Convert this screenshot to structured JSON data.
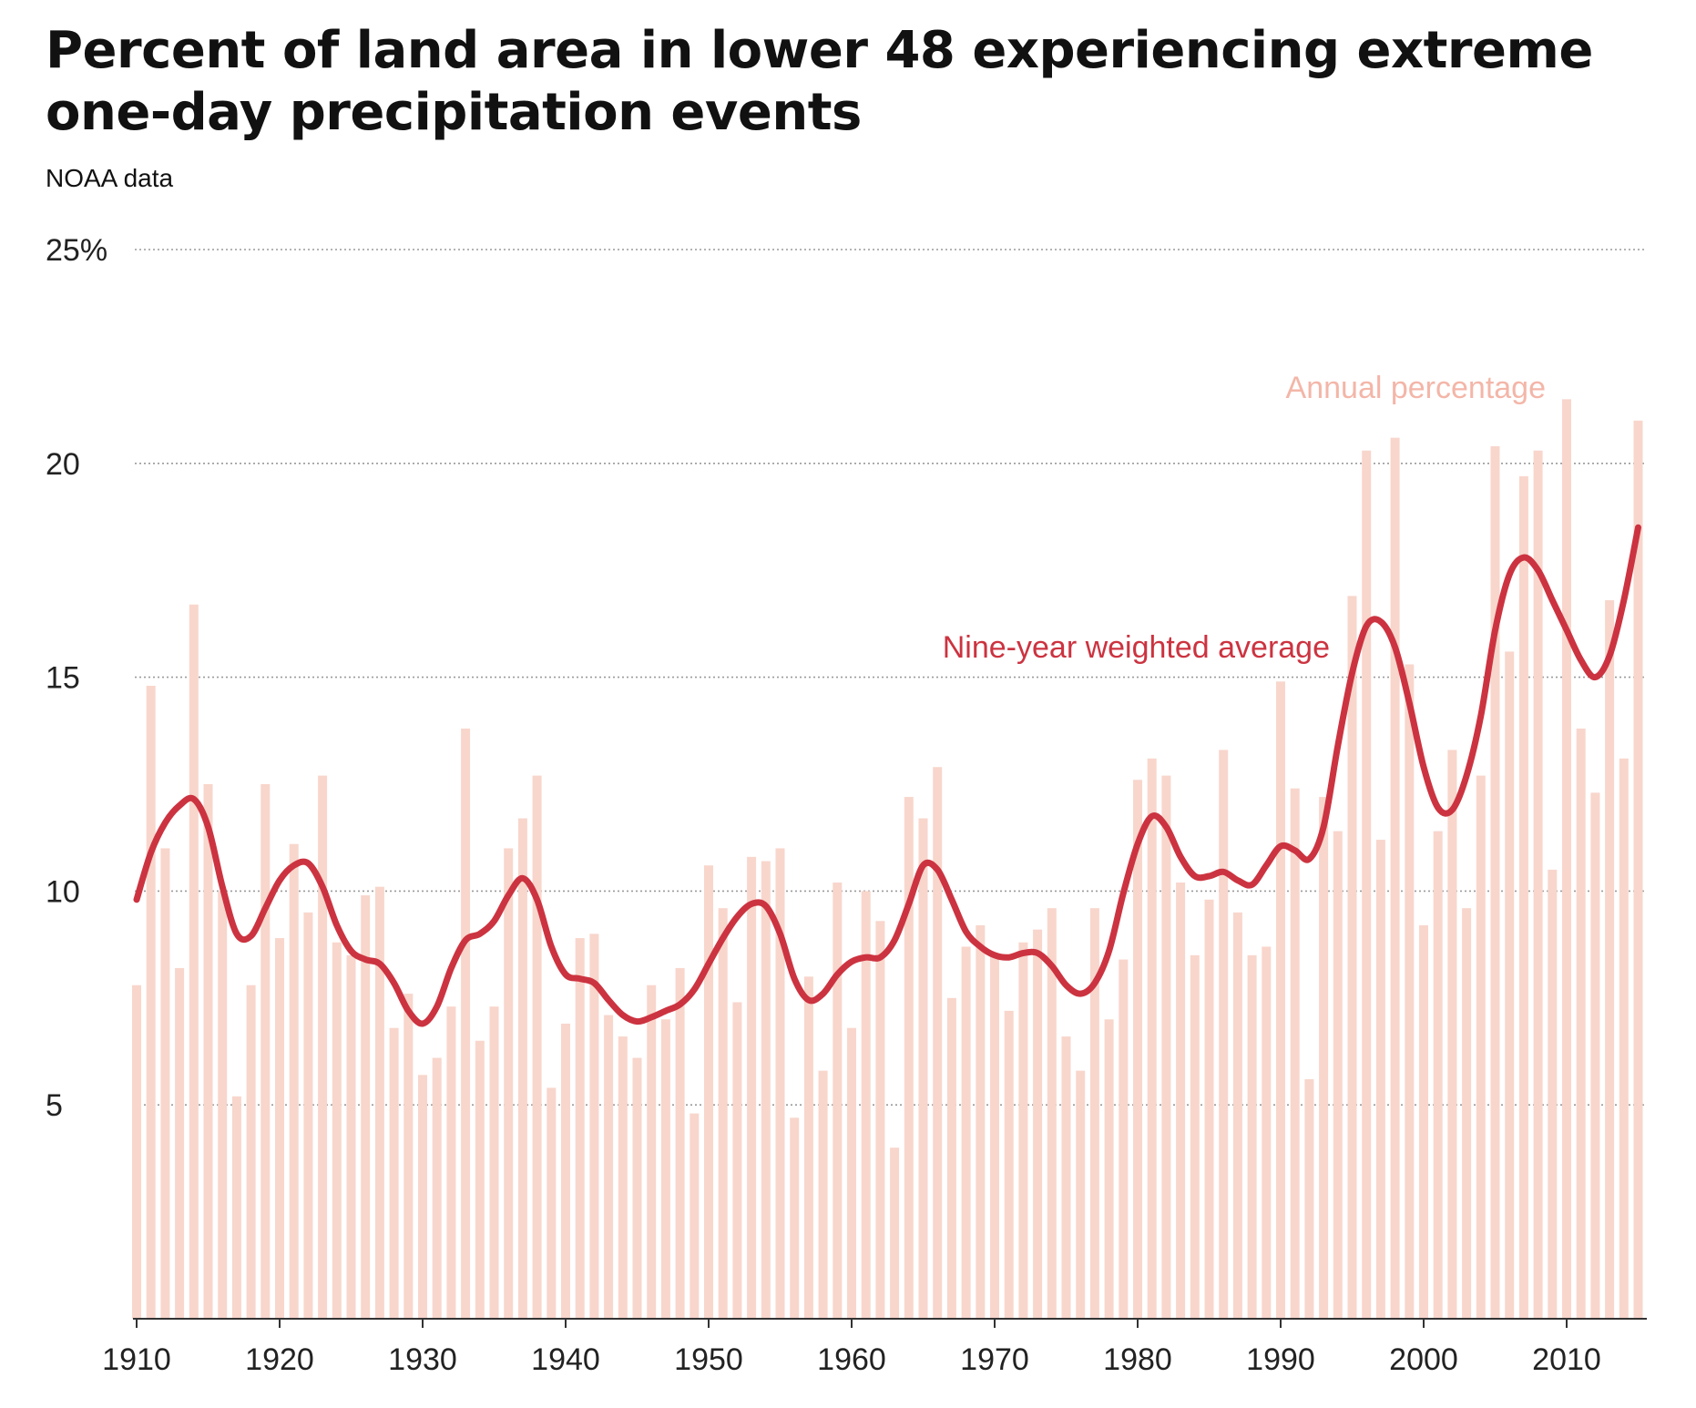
{
  "title": "Percent of land area in lower 48 experiencing extreme one-day precipitation events",
  "subtitle": "NOAA data",
  "colors": {
    "bar": "#f8d6cc",
    "line": "#cc3340",
    "grid": "#9a9a9a",
    "axis": "#333333",
    "bar_label": "#f3b6a8"
  },
  "chart_data": {
    "type": "bar",
    "title": "Percent of land area in lower 48 experiencing extreme one-day precipitation events",
    "subtitle": "NOAA data",
    "ylim": [
      0,
      25
    ],
    "xlim": [
      1910,
      2015
    ],
    "y_ticks": [
      5,
      10,
      15,
      20,
      25
    ],
    "y_tick_labels": [
      "5",
      "10",
      "15",
      "20",
      "25%"
    ],
    "x_ticks": [
      1910,
      1920,
      1930,
      1940,
      1950,
      1960,
      1970,
      1980,
      1990,
      2000,
      2010
    ],
    "x_tick_labels": [
      "1910",
      "1920",
      "1930",
      "1940",
      "1950",
      "1960",
      "1970",
      "1980",
      "1990",
      "2000",
      "2010"
    ],
    "grid": true,
    "legend": "inline labels",
    "series": [
      {
        "name": "Annual percentage",
        "type": "bar",
        "x": [
          1910,
          1911,
          1912,
          1913,
          1914,
          1915,
          1916,
          1917,
          1918,
          1919,
          1920,
          1921,
          1922,
          1923,
          1924,
          1925,
          1926,
          1927,
          1928,
          1929,
          1930,
          1931,
          1932,
          1933,
          1934,
          1935,
          1936,
          1937,
          1938,
          1939,
          1940,
          1941,
          1942,
          1943,
          1944,
          1945,
          1946,
          1947,
          1948,
          1949,
          1950,
          1951,
          1952,
          1953,
          1954,
          1955,
          1956,
          1957,
          1958,
          1959,
          1960,
          1961,
          1962,
          1963,
          1964,
          1965,
          1966,
          1967,
          1968,
          1969,
          1970,
          1971,
          1972,
          1973,
          1974,
          1975,
          1976,
          1977,
          1978,
          1979,
          1980,
          1981,
          1982,
          1983,
          1984,
          1985,
          1986,
          1987,
          1988,
          1989,
          1990,
          1991,
          1992,
          1993,
          1994,
          1995,
          1996,
          1997,
          1998,
          1999,
          2000,
          2001,
          2002,
          2003,
          2004,
          2005,
          2006,
          2007,
          2008,
          2009,
          2010,
          2011,
          2012,
          2013,
          2014,
          2015
        ],
        "values": [
          7.8,
          14.8,
          11.0,
          8.2,
          16.7,
          12.5,
          10.0,
          5.2,
          7.8,
          12.5,
          8.9,
          11.1,
          9.5,
          12.7,
          8.8,
          8.5,
          9.9,
          10.1,
          6.8,
          7.6,
          5.7,
          6.1,
          7.3,
          13.8,
          6.5,
          7.3,
          11.0,
          11.7,
          12.7,
          5.4,
          6.9,
          8.9,
          9.0,
          7.1,
          6.6,
          6.1,
          7.8,
          7.0,
          8.2,
          4.8,
          10.6,
          9.6,
          7.4,
          10.8,
          10.7,
          11.0,
          4.7,
          8.0,
          5.8,
          10.2,
          6.8,
          10.0,
          9.3,
          4.0,
          12.2,
          11.7,
          12.9,
          7.5,
          8.7,
          9.2,
          8.5,
          7.2,
          8.8,
          9.1,
          9.6,
          6.6,
          5.8,
          9.6,
          7.0,
          8.4,
          12.6,
          13.1,
          12.7,
          10.2,
          8.5,
          9.8,
          13.3,
          9.5,
          8.5,
          8.7,
          14.9,
          12.4,
          5.6,
          12.2,
          11.4,
          16.9,
          20.3,
          11.2,
          20.6,
          15.3,
          9.2,
          11.4,
          13.3,
          9.6,
          12.7,
          20.4,
          15.6,
          19.7,
          20.3,
          10.5,
          21.5,
          13.8,
          12.3,
          16.8,
          13.1,
          21.0
        ]
      },
      {
        "name": "Nine-year weighted average",
        "type": "line",
        "x": [
          1910,
          1911,
          1912,
          1913,
          1914,
          1915,
          1916,
          1917,
          1918,
          1919,
          1920,
          1921,
          1922,
          1923,
          1924,
          1925,
          1926,
          1927,
          1928,
          1929,
          1930,
          1931,
          1932,
          1933,
          1934,
          1935,
          1936,
          1937,
          1938,
          1939,
          1940,
          1941,
          1942,
          1943,
          1944,
          1945,
          1946,
          1947,
          1948,
          1949,
          1950,
          1951,
          1952,
          1953,
          1954,
          1955,
          1956,
          1957,
          1958,
          1959,
          1960,
          1961,
          1962,
          1963,
          1964,
          1965,
          1966,
          1967,
          1968,
          1969,
          1970,
          1971,
          1972,
          1973,
          1974,
          1975,
          1976,
          1977,
          1978,
          1979,
          1980,
          1981,
          1982,
          1983,
          1984,
          1985,
          1986,
          1987,
          1988,
          1989,
          1990,
          1991,
          1992,
          1993,
          1994,
          1995,
          1996,
          1997,
          1998,
          1999,
          2000,
          2001,
          2002,
          2003,
          2004,
          2005,
          2006,
          2007,
          2008,
          2009,
          2010,
          2011,
          2012,
          2013,
          2014,
          2015
        ],
        "values": [
          9.8,
          10.9,
          11.6,
          12.0,
          12.15,
          11.5,
          10.1,
          9.0,
          8.95,
          9.6,
          10.25,
          10.6,
          10.65,
          10.1,
          9.2,
          8.6,
          8.4,
          8.3,
          7.85,
          7.2,
          6.9,
          7.3,
          8.2,
          8.85,
          9.0,
          9.3,
          9.9,
          10.3,
          9.8,
          8.7,
          8.05,
          7.95,
          7.85,
          7.45,
          7.1,
          6.95,
          7.05,
          7.2,
          7.35,
          7.7,
          8.3,
          8.9,
          9.4,
          9.7,
          9.65,
          9.0,
          7.95,
          7.45,
          7.6,
          8.05,
          8.35,
          8.45,
          8.45,
          8.85,
          9.7,
          10.6,
          10.5,
          9.8,
          9.05,
          8.7,
          8.5,
          8.45,
          8.55,
          8.55,
          8.25,
          7.8,
          7.6,
          7.85,
          8.6,
          9.95,
          11.1,
          11.75,
          11.5,
          10.8,
          10.35,
          10.35,
          10.45,
          10.25,
          10.15,
          10.6,
          11.05,
          10.95,
          10.75,
          11.5,
          13.4,
          15.1,
          16.2,
          16.3,
          15.7,
          14.4,
          12.9,
          11.95,
          11.9,
          12.7,
          14.1,
          16.1,
          17.4,
          17.8,
          17.5,
          16.8,
          16.1,
          15.4,
          15.0,
          15.5,
          16.8,
          18.5
        ]
      }
    ],
    "annotations": [
      {
        "text": "Annual percentage",
        "series": "Annual percentage"
      },
      {
        "text": "Nine-year weighted average",
        "series": "Nine-year weighted average"
      }
    ]
  }
}
